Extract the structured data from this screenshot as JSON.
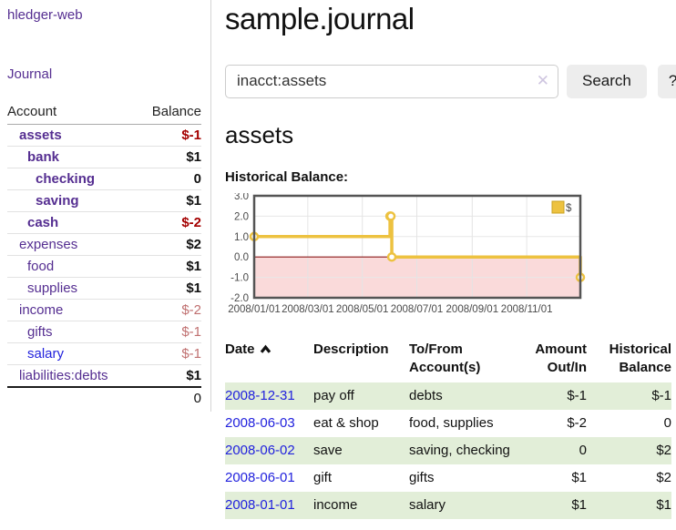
{
  "app": {
    "title": "hledger-web"
  },
  "colors": {
    "purple_link": "#552e91",
    "blue_link": "#2222dd",
    "negative_strong": "#a40000",
    "negative_soft": "#c07070",
    "row_stripe_green": "#e2eed8",
    "chart_line_yellow": "#EDC240"
  },
  "sidebar": {
    "journal_link": "Journal",
    "table": {
      "headers": {
        "account": "Account",
        "balance": "Balance"
      },
      "rows": [
        {
          "name": "assets",
          "balance": "$-1",
          "depth": 1,
          "in_account": true,
          "amount_class": "neg-strong"
        },
        {
          "name": "bank",
          "balance": "$1",
          "depth": 2,
          "in_account": true,
          "amount_class": ""
        },
        {
          "name": "checking",
          "balance": "0",
          "depth": 3,
          "in_account": true,
          "amount_class": ""
        },
        {
          "name": "saving",
          "balance": "$1",
          "depth": 3,
          "in_account": true,
          "amount_class": ""
        },
        {
          "name": "cash",
          "balance": "$-2",
          "depth": 2,
          "in_account": true,
          "amount_class": "neg-strong"
        },
        {
          "name": "expenses",
          "balance": "$2",
          "depth": 1,
          "in_account": false,
          "amount_class": ""
        },
        {
          "name": "food",
          "balance": "$1",
          "depth": 2,
          "in_account": false,
          "amount_class": ""
        },
        {
          "name": "supplies",
          "balance": "$1",
          "depth": 2,
          "in_account": false,
          "amount_class": ""
        },
        {
          "name": "income",
          "balance": "$-2",
          "depth": 1,
          "in_account": false,
          "amount_class": "neg-soft"
        },
        {
          "name": "gifts",
          "balance": "$-1",
          "depth": 2,
          "in_account": false,
          "amount_class": "neg-soft"
        },
        {
          "name": "salary",
          "balance": "$-1",
          "depth": 2,
          "in_account": false,
          "amount_class": "neg-soft",
          "link_class": "blue"
        },
        {
          "name": "liabilities:debts",
          "balance": "$1",
          "depth": 1,
          "in_account": false,
          "amount_class": ""
        }
      ],
      "total": "0"
    }
  },
  "main": {
    "title": "sample.journal",
    "search": {
      "value": "inacct:assets",
      "clear_icon": "✕",
      "button_label": "Search",
      "help_label": "?"
    },
    "account_heading": "assets",
    "chart_heading": "Historical Balance:",
    "register": {
      "headers": {
        "date": "Date",
        "description": "Description",
        "accounts": "To/From Account(s)",
        "amount": "Amount Out/In",
        "balance": "Historical Balance"
      },
      "sort": "ascending",
      "rows": [
        {
          "date": "2008-12-31",
          "description": "pay off",
          "accounts": "debts",
          "amount": "$-1",
          "amount_negative": true,
          "balance": "$-1",
          "balance_negative": true
        },
        {
          "date": "2008-06-03",
          "description": "eat & shop",
          "accounts": "food, supplies",
          "amount": "$-2",
          "amount_negative": true,
          "balance": "0",
          "balance_negative": false
        },
        {
          "date": "2008-06-02",
          "description": "save",
          "accounts": "saving, checking",
          "amount": "0",
          "amount_negative": false,
          "balance": "$2",
          "balance_negative": false
        },
        {
          "date": "2008-06-01",
          "description": "gift",
          "accounts": "gifts",
          "amount": "$1",
          "amount_negative": false,
          "balance": "$2",
          "balance_negative": false
        },
        {
          "date": "2008-01-01",
          "description": "income",
          "accounts": "salary",
          "amount": "$1",
          "amount_negative": false,
          "balance": "$1",
          "balance_negative": false
        }
      ]
    }
  },
  "chart_data": {
    "type": "line",
    "title": "Historical Balance:",
    "style": "step-after",
    "series": [
      {
        "name": "$",
        "color": "#EDC240",
        "points": [
          [
            "2008-01-01",
            1
          ],
          [
            "2008-06-01",
            2
          ],
          [
            "2008-06-02",
            2
          ],
          [
            "2008-06-03",
            0
          ],
          [
            "2008-12-31",
            -1
          ]
        ]
      }
    ],
    "x_range": [
      "2008-01-01",
      "2008-12-31"
    ],
    "x_ticks": [
      "2008/01/01",
      "2008/03/01",
      "2008/05/01",
      "2008/07/01",
      "2008/09/01",
      "2008/11/01"
    ],
    "ylim": [
      -2,
      3
    ],
    "y_tick_step": 1,
    "y_tick_labels": [
      "-2.0",
      "-1.0",
      "0.0",
      "1.0",
      "2.0",
      "3.0"
    ],
    "grid": true,
    "negative_region_fill": "#fadada",
    "zero_line_color": "#8b1a1a",
    "legend_position": "top-right"
  }
}
